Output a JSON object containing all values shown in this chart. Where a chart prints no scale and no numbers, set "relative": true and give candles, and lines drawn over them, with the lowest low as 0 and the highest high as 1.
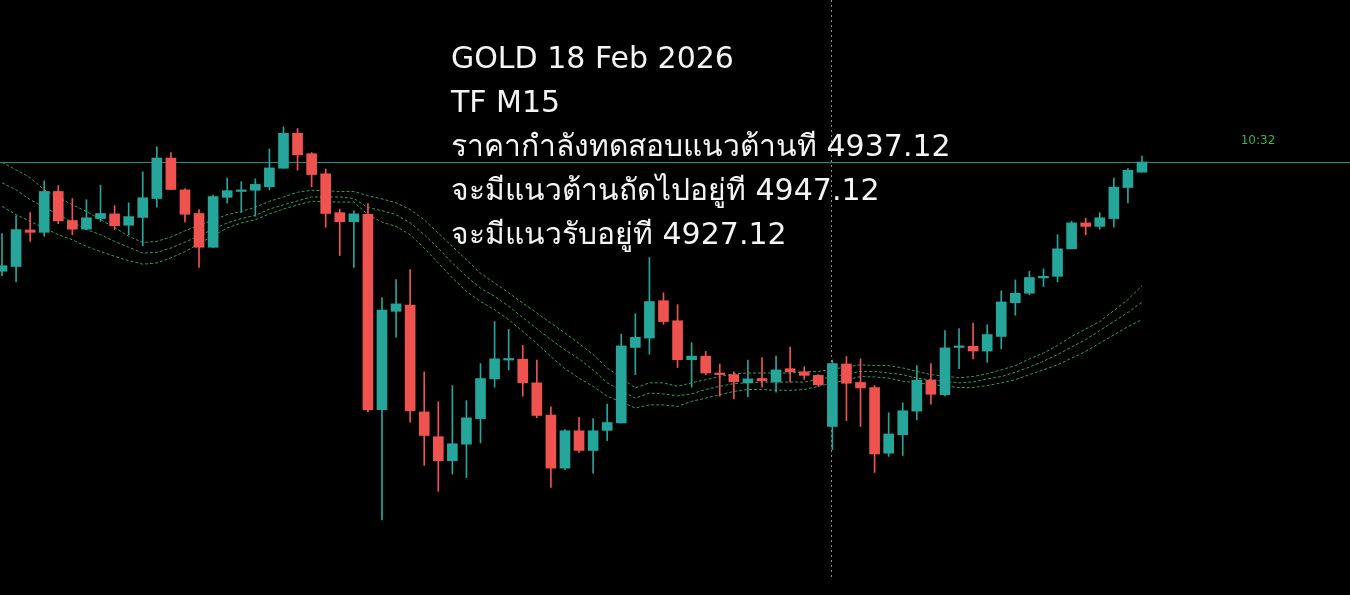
{
  "chart_data": {
    "type": "candlestick",
    "title": "GOLD 18 Feb 2026",
    "subtitle": "TF M15",
    "annotations": [
      "ราคากำลังทดสอบแนวต้านที 4937.12",
      "จะมีแนวต้านถัดไปอยู่ที 4947.12",
      "จะมีแนวรับอยู่ที 4927.12",
      {
        "text": "10:32",
        "y": 0.911
      }
    ],
    "relative": true,
    "marker": "none",
    "line_style": "dashed",
    "categories": [
      null,
      null,
      null,
      null,
      null,
      null,
      null,
      null,
      null,
      null,
      null,
      null,
      null,
      null,
      null,
      null,
      null,
      null,
      null,
      null,
      null,
      null,
      null,
      null,
      null,
      null,
      null,
      null,
      null,
      null,
      null,
      null,
      null,
      null,
      null,
      null,
      null,
      null,
      null,
      null,
      null,
      null,
      null,
      null,
      null,
      null,
      null,
      null,
      null,
      null,
      null,
      null,
      null,
      null,
      null,
      null,
      null,
      null,
      null,
      null,
      null,
      null,
      null,
      null,
      null,
      null,
      null,
      null,
      null,
      null,
      null,
      null,
      null,
      null,
      null,
      null,
      null,
      null,
      null,
      null,
      null,
      null
    ],
    "ohlc": [
      [
        0.633,
        0.729,
        0.622,
        0.647
      ],
      [
        0.645,
        0.774,
        0.606,
        0.739
      ],
      [
        0.738,
        0.782,
        0.709,
        0.732
      ],
      [
        0.732,
        0.863,
        0.722,
        0.836
      ],
      [
        0.836,
        0.851,
        0.754,
        0.761
      ],
      [
        0.762,
        0.818,
        0.726,
        0.74
      ],
      [
        0.74,
        0.815,
        0.739,
        0.769
      ],
      [
        0.767,
        0.852,
        0.76,
        0.78
      ],
      [
        0.779,
        0.8,
        0.739,
        0.749
      ],
      [
        0.75,
        0.807,
        0.726,
        0.772
      ],
      [
        0.77,
        0.886,
        0.698,
        0.82
      ],
      [
        0.818,
        0.95,
        0.796,
        0.921
      ],
      [
        0.921,
        0.935,
        0.841,
        0.841
      ],
      [
        0.84,
        0.843,
        0.758,
        0.778
      ],
      [
        0.78,
        0.79,
        0.643,
        0.694
      ],
      [
        0.694,
        0.827,
        0.694,
        0.823
      ],
      [
        0.821,
        0.87,
        0.806,
        0.838
      ],
      [
        0.836,
        0.861,
        0.783,
        0.84
      ],
      [
        0.839,
        0.868,
        0.773,
        0.854
      ],
      [
        0.848,
        0.944,
        0.84,
        0.896
      ],
      [
        0.895,
        1.0,
        0.895,
        0.984
      ],
      [
        0.984,
        0.996,
        0.89,
        0.929
      ],
      [
        0.932,
        0.935,
        0.848,
        0.879
      ],
      [
        0.881,
        0.893,
        0.745,
        0.78
      ],
      [
        0.782,
        0.791,
        0.673,
        0.759
      ],
      [
        0.759,
        0.787,
        0.643,
        0.779
      ],
      [
        0.778,
        0.805,
        0.275,
        0.281
      ],
      [
        0.281,
        0.566,
        0.0,
        0.534
      ],
      [
        0.531,
        0.612,
        0.465,
        0.55
      ],
      [
        0.547,
        0.637,
        0.249,
        0.278
      ],
      [
        0.275,
        0.377,
        0.139,
        0.215
      ],
      [
        0.212,
        0.301,
        0.073,
        0.151
      ],
      [
        0.151,
        0.342,
        0.117,
        0.194
      ],
      [
        0.193,
        0.304,
        0.108,
        0.26
      ],
      [
        0.258,
        0.398,
        0.196,
        0.36
      ],
      [
        0.359,
        0.505,
        0.338,
        0.41
      ],
      [
        0.407,
        0.485,
        0.382,
        0.411
      ],
      [
        0.409,
        0.444,
        0.315,
        0.349
      ],
      [
        0.349,
        0.407,
        0.26,
        0.266
      ],
      [
        0.267,
        0.288,
        0.083,
        0.132
      ],
      [
        0.132,
        0.23,
        0.128,
        0.227
      ],
      [
        0.227,
        0.261,
        0.172,
        0.177
      ],
      [
        0.177,
        0.258,
        0.119,
        0.227
      ],
      [
        0.228,
        0.295,
        0.202,
        0.248
      ],
      [
        0.247,
        0.473,
        0.247,
        0.443
      ],
      [
        0.439,
        0.525,
        0.37,
        0.465
      ],
      [
        0.463,
        0.668,
        0.422,
        0.556
      ],
      [
        0.558,
        0.578,
        0.498,
        0.505
      ],
      [
        0.507,
        0.548,
        0.388,
        0.408
      ],
      [
        0.408,
        0.451,
        0.338,
        0.417
      ],
      [
        0.417,
        0.429,
        0.37,
        0.374
      ],
      [
        0.374,
        0.397,
        0.315,
        0.37
      ],
      [
        0.37,
        0.377,
        0.308,
        0.352
      ],
      [
        0.349,
        0.407,
        0.314,
        0.359
      ],
      [
        0.36,
        0.413,
        0.338,
        0.354
      ],
      [
        0.351,
        0.417,
        0.325,
        0.382
      ],
      [
        0.385,
        0.44,
        0.351,
        0.377
      ],
      [
        0.377,
        0.39,
        0.358,
        0.368
      ],
      [
        0.368,
        0.37,
        0.34,
        0.344
      ],
      [
        0.238,
        0.407,
        0.179,
        0.398
      ],
      [
        0.397,
        0.416,
        0.253,
        0.348
      ],
      [
        0.35,
        0.41,
        0.238,
        0.336
      ],
      [
        0.337,
        0.342,
        0.121,
        0.168
      ],
      [
        0.17,
        0.273,
        0.162,
        0.219
      ],
      [
        0.217,
        0.298,
        0.164,
        0.278
      ],
      [
        0.277,
        0.393,
        0.255,
        0.356
      ],
      [
        0.356,
        0.398,
        0.295,
        0.32
      ],
      [
        0.319,
        0.482,
        0.316,
        0.438
      ],
      [
        0.439,
        0.487,
        0.385,
        0.443
      ],
      [
        0.442,
        0.501,
        0.41,
        0.43
      ],
      [
        0.43,
        0.497,
        0.401,
        0.472
      ],
      [
        0.467,
        0.583,
        0.436,
        0.555
      ],
      [
        0.553,
        0.611,
        0.521,
        0.577
      ],
      [
        0.577,
        0.633,
        0.573,
        0.617
      ],
      [
        0.616,
        0.639,
        0.594,
        0.62
      ],
      [
        0.62,
        0.726,
        0.606,
        0.69
      ],
      [
        0.69,
        0.76,
        0.69,
        0.756
      ],
      [
        0.756,
        0.768,
        0.726,
        0.747
      ],
      [
        0.747,
        0.782,
        0.74,
        0.769
      ],
      [
        0.767,
        0.87,
        0.745,
        0.847
      ],
      [
        0.846,
        0.894,
        0.807,
        0.89
      ],
      [
        0.885,
        0.926,
        0.885,
        0.911
      ]
    ],
    "colors": [
      "#26a69a",
      "#26a69a",
      "#ef5350",
      "#26a69a",
      "#ef5350",
      "#ef5350",
      "#26a69a",
      "#26a69a",
      "#ef5350",
      "#26a69a",
      "#26a69a",
      "#26a69a",
      "#ef5350",
      "#ef5350",
      "#ef5350",
      "#26a69a",
      "#26a69a",
      "#26a69a",
      "#26a69a",
      "#26a69a",
      "#26a69a",
      "#ef5350",
      "#ef5350",
      "#ef5350",
      "#ef5350",
      "#26a69a",
      "#ef5350",
      "#26a69a",
      "#26a69a",
      "#ef5350",
      "#ef5350",
      "#ef5350",
      "#26a69a",
      "#26a69a",
      "#26a69a",
      "#26a69a",
      "#26a69a",
      "#ef5350",
      "#ef5350",
      "#ef5350",
      "#26a69a",
      "#ef5350",
      "#26a69a",
      "#26a69a",
      "#26a69a",
      "#26a69a",
      "#26a69a",
      "#ef5350",
      "#ef5350",
      "#26a69a",
      "#ef5350",
      "#ef5350",
      "#ef5350",
      "#26a69a",
      "#ef5350",
      "#26a69a",
      "#ef5350",
      "#ef5350",
      "#ef5350",
      "#26a69a",
      "#ef5350",
      "#ef5350",
      "#ef5350",
      "#26a69a",
      "#26a69a",
      "#26a69a",
      "#ef5350",
      "#26a69a",
      "#26a69a",
      "#ef5350",
      "#26a69a",
      "#26a69a",
      "#26a69a",
      "#26a69a",
      "#26a69a",
      "#26a69a",
      "#26a69a",
      "#ef5350",
      "#26a69a",
      "#26a69a",
      "#26a69a",
      "#26a69a"
    ],
    "series": [
      {
        "type": "line",
        "color": "#2e9d5b",
        "values": [
          0.91,
          0.891,
          0.871,
          0.84,
          null,
          0.802,
          0.785,
          null,
          0.744,
          0.722,
          0.706,
          0.709,
          0.72,
          0.736,
          null,
          null,
          0.777,
          0.785,
          0.796,
          0.811,
          0.822,
          0.834,
          0.839,
          null,
          0.836,
          0.836,
          0.825,
          0.817,
          0.807,
          0.79,
          0.764,
          0.73,
          0.696,
          0.662,
          0.628,
          0.603,
          0.578,
          0.552,
          0.527,
          0.501,
          0.476,
          0.449,
          0.421,
          0.387,
          null,
          0.336,
          0.349,
          0.349,
          0.34,
          0.349,
          0.357,
          0.365,
          0.372,
          0.374,
          0.374,
          null,
          0.374,
          0.377,
          0.378,
          null,
          null,
          0.395,
          0.393,
          0.393,
          0.387,
          0.378,
          0.37,
          null,
          0.362,
          0.365,
          0.372,
          0.382,
          0.393,
          0.41,
          0.425,
          0.444,
          0.467,
          0.486,
          0.505,
          0.533,
          0.561,
          0.596
        ]
      },
      {
        "type": "line",
        "color": "#2e9d5b",
        "values": [
          0.858,
          0.84,
          0.815,
          null,
          null,
          null,
          0.739,
          0.726,
          0.709,
          0.694,
          0.679,
          0.681,
          0.692,
          0.707,
          null,
          null,
          0.756,
          0.767,
          0.775,
          0.791,
          0.802,
          0.812,
          0.822,
          null,
          0.822,
          0.818,
          0.795,
          0.787,
          0.777,
          0.756,
          0.726,
          0.692,
          0.654,
          0.62,
          0.59,
          0.569,
          0.544,
          0.515,
          0.487,
          0.459,
          0.433,
          0.41,
          0.382,
          0.349,
          null,
          0.31,
          0.323,
          0.321,
          0.316,
          0.321,
          0.332,
          0.34,
          0.347,
          0.349,
          0.351,
          0.351,
          0.351,
          0.351,
          null,
          null,
          null,
          0.378,
          0.378,
          0.374,
          0.37,
          0.361,
          null,
          null,
          0.349,
          0.351,
          0.359,
          0.365,
          0.376,
          0.389,
          0.404,
          0.421,
          0.44,
          0.459,
          0.482,
          0.505,
          0.528,
          0.554
        ]
      },
      {
        "type": "line",
        "color": "#2e9d5b",
        "values": [
          0.798,
          0.777,
          0.76,
          null,
          0.726,
          0.713,
          0.696,
          0.683,
          0.671,
          0.66,
          0.651,
          0.654,
          0.667,
          0.683,
          null,
          null,
          0.743,
          0.756,
          0.764,
          0.779,
          0.791,
          0.802,
          0.811,
          null,
          0.809,
          0.809,
          0.777,
          0.758,
          0.747,
          0.726,
          0.692,
          0.654,
          0.616,
          0.582,
          0.556,
          0.535,
          0.51,
          0.48,
          0.449,
          0.416,
          0.385,
          0.361,
          0.34,
          0.315,
          null,
          0.285,
          0.293,
          0.293,
          0.289,
          0.302,
          0.31,
          0.319,
          0.327,
          0.332,
          0.332,
          0.33,
          0.33,
          0.332,
          0.34,
          null,
          null,
          0.365,
          0.364,
          0.361,
          0.353,
          null,
          null,
          null,
          0.337,
          0.337,
          0.342,
          0.349,
          0.357,
          0.37,
          0.382,
          0.395,
          0.412,
          0.429,
          0.45,
          0.471,
          0.492,
          0.51
        ]
      }
    ],
    "ref_lines": [
      {
        "axis": "y",
        "value": 0.911,
        "color": "#1f8f88"
      }
    ]
  }
}
